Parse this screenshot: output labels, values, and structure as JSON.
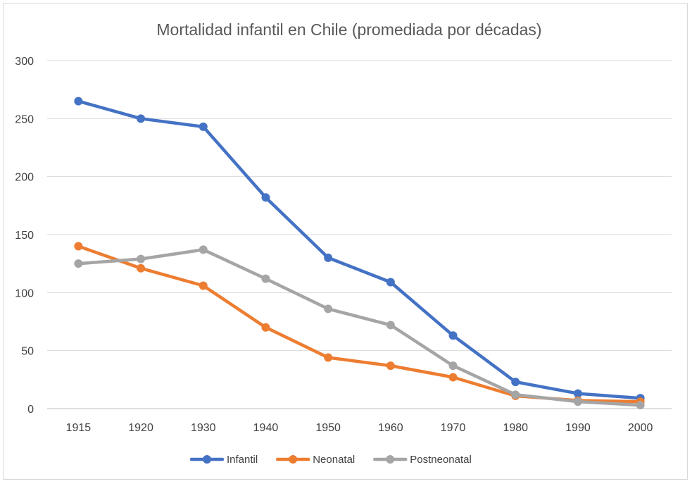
{
  "chart_data": {
    "type": "line",
    "title": "Mortalidad infantil en Chile (promediada por décadas)",
    "xlabel": "",
    "ylabel": "",
    "categories": [
      "1915",
      "1920",
      "1930",
      "1940",
      "1950",
      "1960",
      "1970",
      "1980",
      "1990",
      "2000"
    ],
    "ylim": [
      0,
      300
    ],
    "yticks": [
      0,
      50,
      100,
      150,
      200,
      250,
      300
    ],
    "grid": true,
    "legend_position": "bottom",
    "series": [
      {
        "name": "Infantil",
        "color": "#4472c4",
        "values": [
          265,
          250,
          243,
          182,
          130,
          109,
          63,
          23,
          13,
          9
        ]
      },
      {
        "name": "Neonatal",
        "color": "#ed7d31",
        "values": [
          140,
          121,
          106,
          70,
          44,
          37,
          27,
          11,
          7,
          6
        ]
      },
      {
        "name": "Postneonatal",
        "color": "#a5a5a5",
        "values": [
          125,
          129,
          137,
          112,
          86,
          72,
          37,
          12,
          6,
          3
        ]
      }
    ]
  }
}
